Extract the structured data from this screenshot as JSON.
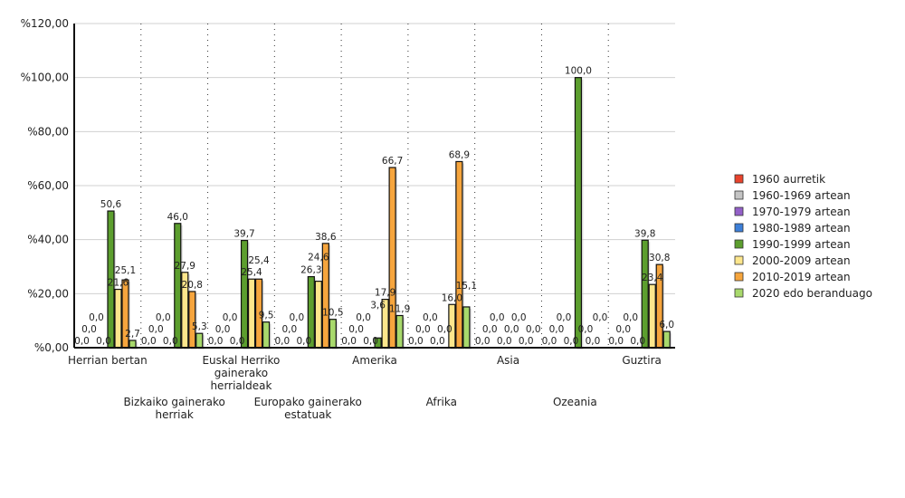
{
  "chart_data": {
    "type": "bar",
    "title": "",
    "xlabel": "",
    "ylabel": "",
    "ylim": [
      0,
      120
    ],
    "yticks": [
      "%0,00",
      "%20,00",
      "%40,00",
      "%60,00",
      "%80,00",
      "%100,00",
      "%120,00"
    ],
    "grid": true,
    "legend_position": "right",
    "categories": [
      "Herrian bertan",
      "Bizkaiko gainerako herriak",
      "Euskal Herriko gainerako herrialdeak",
      "Europako gainerako estatuak",
      "Amerika",
      "Afrika",
      "Asia",
      "Ozeania",
      "Guztira"
    ],
    "series": [
      {
        "name": "1960 aurretik",
        "color": "#e8432c",
        "values": [
          0,
          0,
          0,
          0,
          0,
          0,
          0,
          0,
          0
        ]
      },
      {
        "name": "1960-1969 artean",
        "color": "#c4c4c4",
        "values": [
          0,
          0,
          0,
          0,
          0,
          0,
          0,
          0,
          0
        ]
      },
      {
        "name": "1970-1979 artean",
        "color": "#9360c8",
        "values": [
          0,
          0,
          0,
          0,
          0,
          0,
          0,
          0,
          0
        ]
      },
      {
        "name": "1980-1989 artean",
        "color": "#3d7fd8",
        "values": [
          0,
          0,
          0,
          0,
          0,
          0,
          0,
          0,
          0
        ]
      },
      {
        "name": "1990-1999 artean",
        "color": "#5c9e2e",
        "values": [
          50.6,
          46.0,
          39.7,
          26.3,
          3.6,
          0,
          0,
          100.0,
          39.8
        ]
      },
      {
        "name": "2000-2009 artean",
        "color": "#fde68c",
        "values": [
          21.6,
          27.9,
          25.4,
          24.6,
          17.9,
          16.0,
          0,
          0,
          23.4
        ]
      },
      {
        "name": "2010-2019 artean",
        "color": "#f6a53d",
        "values": [
          25.1,
          20.8,
          25.4,
          38.6,
          66.7,
          68.9,
          0,
          0,
          30.8
        ]
      },
      {
        "name": "2020 edo beranduago",
        "color": "#a8d96c",
        "values": [
          2.7,
          5.3,
          9.5,
          10.5,
          11.9,
          15.1,
          0,
          0,
          6.0
        ]
      }
    ]
  }
}
